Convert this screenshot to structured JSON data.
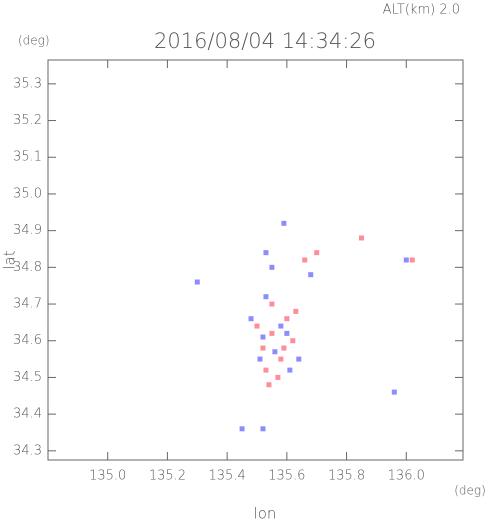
{
  "chart_data": {
    "type": "scatter",
    "title": "2016/08/04 14:34:26",
    "subtitle": "ALT(km) 2.0",
    "y_unit": "(deg)",
    "x_unit": "(deg)",
    "x_label": "lon",
    "y_label": "lat",
    "xlim": [
      134.8,
      136.19
    ],
    "ylim": [
      34.275,
      35.365
    ],
    "xticks": [
      {
        "value": 135.0,
        "label": "135.0"
      },
      135.2,
      135.4,
      135.6,
      135.8,
      {
        "value": 136.0,
        "label": "136.0"
      }
    ],
    "yticks": [
      34.3,
      34.4,
      34.5,
      34.6,
      34.7,
      34.8,
      34.9,
      {
        "value": 35.0,
        "label": "35.0"
      },
      35.1,
      35.2,
      35.3
    ],
    "series": [
      {
        "color": "#ff6f80",
        "x": [
          135.52,
          135.55,
          135.58,
          135.6,
          135.53,
          135.57,
          135.62,
          135.5,
          135.7,
          135.85,
          136.02,
          135.66,
          135.55,
          135.59,
          135.54,
          135.63
        ],
        "values": [
          34.58,
          34.62,
          34.55,
          34.66,
          34.52,
          34.5,
          34.6,
          34.64,
          34.84,
          34.88,
          34.82,
          34.82,
          34.7,
          34.58,
          34.48,
          34.68
        ]
      },
      {
        "color": "#6f6fff",
        "x": [
          135.48,
          135.52,
          135.56,
          135.6,
          135.64,
          135.58,
          135.51,
          135.3,
          135.53,
          135.59,
          135.96,
          136.0,
          135.45,
          135.52,
          135.68,
          135.55,
          135.61,
          135.53
        ],
        "values": [
          34.66,
          34.61,
          34.57,
          34.62,
          34.55,
          34.64,
          34.55,
          34.76,
          34.84,
          34.92,
          34.46,
          34.82,
          34.36,
          34.36,
          34.78,
          34.8,
          34.52,
          34.72
        ]
      }
    ]
  }
}
